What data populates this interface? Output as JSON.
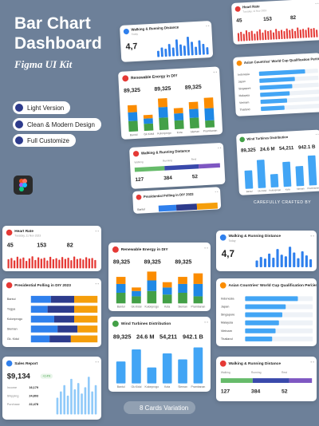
{
  "hero": {
    "title_line1": "Bar Chart",
    "title_line2": "Dashboard",
    "subtitle": "Figma UI Kit",
    "pills": [
      "Light Version",
      "Clean & Modern Design",
      "Full Customize"
    ]
  },
  "watermark": "CAREFULLY CRAFTED BY",
  "footer": "8 Cards Variation",
  "cards": [
    {
      "type": "bar",
      "title": "Heart Rate",
      "subtitle": "Tuesday, 11 Nov 2023",
      "accent": "#e53935",
      "color": "#e53935",
      "stats": [
        "45",
        "153",
        "82"
      ],
      "values": [
        55,
        62,
        48,
        70,
        58,
        65,
        45,
        60,
        72,
        50,
        66,
        58,
        63,
        47,
        69,
        55,
        61,
        52,
        68,
        57,
        64,
        49,
        71,
        56,
        60,
        53,
        67,
        59,
        62,
        50
      ],
      "ylim": [
        0,
        100
      ]
    },
    {
      "type": "hbar_stacked",
      "title": "Presidential Polling in DIY 2023",
      "accent": "#e53935",
      "categories": [
        "Bantul",
        "Yogya",
        "Kulonprogo",
        "Sleman",
        "Gk. Kidul"
      ],
      "series": [
        {
          "color": "#2f80ed",
          "values": [
            30,
            25,
            35,
            40,
            28
          ]
        },
        {
          "color": "#2d3b8c",
          "values": [
            35,
            40,
            30,
            30,
            32
          ]
        },
        {
          "color": "#f59e0b",
          "values": [
            35,
            35,
            35,
            30,
            40
          ]
        }
      ],
      "xlim": [
        0,
        100
      ]
    },
    {
      "type": "bar",
      "title": "Sales Report",
      "accent": "#2f80ed",
      "color": "#90caf9",
      "stat": "$9,134",
      "badge": "+2.4%",
      "items": [
        {
          "label": "Income",
          "value": "16,179"
        },
        {
          "label": "Shipping",
          "value": "24,803"
        },
        {
          "label": "Purchase",
          "value": "22,478"
        }
      ],
      "values": [
        40,
        55,
        70,
        45,
        85,
        60,
        75,
        50,
        65,
        90,
        55,
        70
      ],
      "ylim": [
        0,
        100
      ]
    },
    {
      "type": "stacked_bar",
      "title": "Renewable Energy in DIY",
      "accent": "#e53935",
      "stats": [
        "89,325",
        "89,325",
        "89,325"
      ],
      "categories": [
        "Bantul",
        "Gk.Kidul",
        "Kulonprogo",
        "Kota",
        "Sleman",
        "Prambanan"
      ],
      "series": [
        {
          "color": "#43a047",
          "values": [
            30,
            20,
            35,
            25,
            30,
            20
          ]
        },
        {
          "color": "#1e88e5",
          "values": [
            25,
            15,
            30,
            20,
            25,
            35
          ]
        },
        {
          "color": "#fb8c00",
          "values": [
            20,
            10,
            25,
            15,
            20,
            30
          ]
        }
      ],
      "ylim": [
        0,
        100
      ]
    },
    {
      "type": "bar",
      "title": "Wind Turbines Distribution",
      "accent": "#43a047",
      "color": "#42a5f5",
      "stats": [
        "89,325",
        "24.6 M",
        "54,211",
        "942.1 B"
      ],
      "categories": [
        "Bantul",
        "Gk.Kidul",
        "Kulonprogo",
        "Kota",
        "Sleman",
        "Prambanan"
      ],
      "values": [
        55,
        85,
        40,
        75,
        60,
        90
      ],
      "ylim": [
        0,
        100
      ]
    },
    {
      "type": "bar",
      "title": "Walking & Running Distance",
      "subtitle": "Today",
      "accent": "#2f80ed",
      "color": "#2f80ed",
      "stats": [
        "4,7"
      ],
      "values": [
        30,
        45,
        38,
        60,
        42,
        80,
        55,
        48,
        90,
        65,
        40,
        70,
        52,
        35
      ],
      "ylim": [
        0,
        100
      ]
    },
    {
      "type": "hbar",
      "title": "Asian Countries' World Cup Qualification Percentage",
      "accent": "#fb8c00",
      "color": "#42a5f5",
      "categories": [
        "Indonesia",
        "Japan",
        "Singapore",
        "Malaysia",
        "Vietnam",
        "Thailand"
      ],
      "values": [
        78,
        60,
        55,
        50,
        45,
        40
      ],
      "xlim": [
        0,
        100
      ]
    },
    {
      "type": "progress",
      "title": "Walking & Running Distance",
      "accent": "#e53935",
      "labels": [
        "Walking",
        "Running",
        "Rest"
      ],
      "stats": [
        "127",
        "384",
        "52"
      ],
      "series": [
        {
          "color": "#66bb6a",
          "values": [
            35
          ]
        },
        {
          "color": "#3949ab",
          "values": [
            40
          ]
        },
        {
          "color": "#7e57c2",
          "values": [
            25
          ]
        }
      ],
      "xlim": [
        0,
        100
      ]
    }
  ]
}
